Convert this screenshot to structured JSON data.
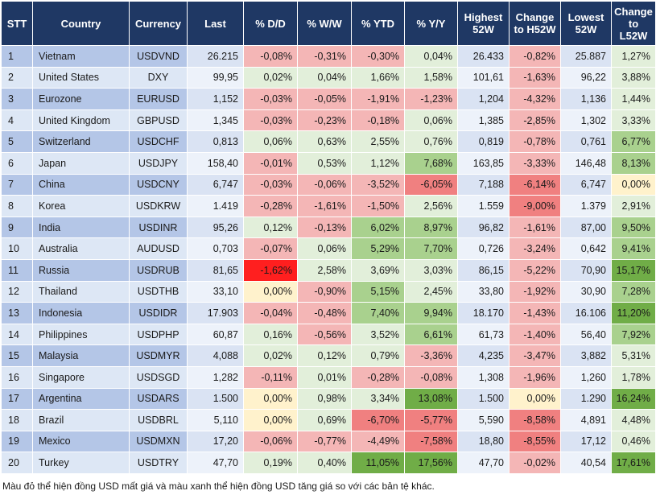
{
  "headers": [
    "STT",
    "Country",
    "Currency",
    "Last",
    "% D/D",
    "% W/W",
    "% YTD",
    "% Y/Y",
    "Highest 52W",
    "Change to H52W",
    "Lowest 52W",
    "Change to L52W"
  ],
  "rows": [
    {
      "stt": "1",
      "country": "Vietnam",
      "currency": "USDVND",
      "last": "26.215",
      "dd": "-0,08%",
      "ww": "-0,31%",
      "ytd": "-0,30%",
      "yy": "0,04%",
      "high": "26.433",
      "ch": "-0,82%",
      "low": "25.887",
      "cl": "1,27%"
    },
    {
      "stt": "2",
      "country": "United States",
      "currency": "DXY",
      "last": "99,95",
      "dd": "0,02%",
      "ww": "0,04%",
      "ytd": "1,66%",
      "yy": "1,58%",
      "high": "101,61",
      "ch": "-1,63%",
      "low": "96,22",
      "cl": "3,88%"
    },
    {
      "stt": "3",
      "country": "Eurozone",
      "currency": "EURUSD",
      "last": "1,152",
      "dd": "-0,03%",
      "ww": "-0,05%",
      "ytd": "-1,91%",
      "yy": "-1,23%",
      "high": "1,204",
      "ch": "-4,32%",
      "low": "1,136",
      "cl": "1,44%"
    },
    {
      "stt": "4",
      "country": "United Kingdom",
      "currency": "GBPUSD",
      "last": "1,345",
      "dd": "-0,03%",
      "ww": "-0,23%",
      "ytd": "-0,18%",
      "yy": "0,06%",
      "high": "1,385",
      "ch": "-2,85%",
      "low": "1,302",
      "cl": "3,33%"
    },
    {
      "stt": "5",
      "country": "Switzerland",
      "currency": "USDCHF",
      "last": "0,813",
      "dd": "0,06%",
      "ww": "0,63%",
      "ytd": "2,55%",
      "yy": "0,76%",
      "high": "0,819",
      "ch": "-0,78%",
      "low": "0,761",
      "cl": "6,77%"
    },
    {
      "stt": "6",
      "country": "Japan",
      "currency": "USDJPY",
      "last": "158,40",
      "dd": "-0,01%",
      "ww": "0,53%",
      "ytd": "1,12%",
      "yy": "7,68%",
      "high": "163,85",
      "ch": "-3,33%",
      "low": "146,48",
      "cl": "8,13%"
    },
    {
      "stt": "7",
      "country": "China",
      "currency": "USDCNY",
      "last": "6,747",
      "dd": "-0,03%",
      "ww": "-0,06%",
      "ytd": "-3,52%",
      "yy": "-6,05%",
      "high": "7,188",
      "ch": "-6,14%",
      "low": "6,747",
      "cl": "0,00%"
    },
    {
      "stt": "8",
      "country": "Korea",
      "currency": "USDKRW",
      "last": "1.419",
      "dd": "-0,28%",
      "ww": "-1,61%",
      "ytd": "-1,50%",
      "yy": "2,56%",
      "high": "1.559",
      "ch": "-9,00%",
      "low": "1.379",
      "cl": "2,91%"
    },
    {
      "stt": "9",
      "country": "India",
      "currency": "USDINR",
      "last": "95,26",
      "dd": "0,12%",
      "ww": "-0,13%",
      "ytd": "6,02%",
      "yy": "8,97%",
      "high": "96,82",
      "ch": "-1,61%",
      "low": "87,00",
      "cl": "9,50%"
    },
    {
      "stt": "10",
      "country": "Australia",
      "currency": "AUDUSD",
      "last": "0,703",
      "dd": "-0,07%",
      "ww": "0,06%",
      "ytd": "5,29%",
      "yy": "7,70%",
      "high": "0,726",
      "ch": "-3,24%",
      "low": "0,642",
      "cl": "9,41%"
    },
    {
      "stt": "11",
      "country": "Russia",
      "currency": "USDRUB",
      "last": "81,65",
      "dd": "-1,62%",
      "ww": "2,58%",
      "ytd": "3,69%",
      "yy": "3,03%",
      "high": "86,15",
      "ch": "-5,22%",
      "low": "70,90",
      "cl": "15,17%"
    },
    {
      "stt": "12",
      "country": "Thailand",
      "currency": "USDTHB",
      "last": "33,10",
      "dd": "0,00%",
      "ww": "-0,90%",
      "ytd": "5,15%",
      "yy": "2,45%",
      "high": "33,80",
      "ch": "-1,92%",
      "low": "30,90",
      "cl": "7,28%"
    },
    {
      "stt": "13",
      "country": "Indonesia",
      "currency": "USDIDR",
      "last": "17.903",
      "dd": "-0,04%",
      "ww": "-0,48%",
      "ytd": "7,40%",
      "yy": "9,94%",
      "high": "18.170",
      "ch": "-1,43%",
      "low": "16.106",
      "cl": "11,20%"
    },
    {
      "stt": "14",
      "country": "Philippines",
      "currency": "USDPHP",
      "last": "60,87",
      "dd": "0,16%",
      "ww": "-0,56%",
      "ytd": "3,52%",
      "yy": "6,61%",
      "high": "61,73",
      "ch": "-1,40%",
      "low": "56,40",
      "cl": "7,92%"
    },
    {
      "stt": "15",
      "country": "Malaysia",
      "currency": "USDMYR",
      "last": "4,088",
      "dd": "0,02%",
      "ww": "0,12%",
      "ytd": "0,79%",
      "yy": "-3,36%",
      "high": "4,235",
      "ch": "-3,47%",
      "low": "3,882",
      "cl": "5,31%"
    },
    {
      "stt": "16",
      "country": "Singapore",
      "currency": "USDSGD",
      "last": "1,282",
      "dd": "-0,11%",
      "ww": "0,01%",
      "ytd": "-0,28%",
      "yy": "-0,08%",
      "high": "1,308",
      "ch": "-1,96%",
      "low": "1,260",
      "cl": "1,78%"
    },
    {
      "stt": "17",
      "country": "Argentina",
      "currency": "USDARS",
      "last": "1.500",
      "dd": "0,00%",
      "ww": "0,98%",
      "ytd": "3,34%",
      "yy": "13,08%",
      "high": "1.500",
      "ch": "0,00%",
      "low": "1.290",
      "cl": "16,24%"
    },
    {
      "stt": "18",
      "country": "Brazil",
      "currency": "USDBRL",
      "last": "5,110",
      "dd": "0,00%",
      "ww": "0,69%",
      "ytd": "-6,70%",
      "yy": "-5,77%",
      "high": "5,590",
      "ch": "-8,58%",
      "low": "4,891",
      "cl": "4,48%"
    },
    {
      "stt": "19",
      "country": "Mexico",
      "currency": "USDMXN",
      "last": "17,20",
      "dd": "-0,06%",
      "ww": "-0,77%",
      "ytd": "-4,49%",
      "yy": "-7,58%",
      "high": "18,80",
      "ch": "-8,55%",
      "low": "17,12",
      "cl": "0,46%"
    },
    {
      "stt": "20",
      "country": "Turkey",
      "currency": "USDTRY",
      "last": "47,70",
      "dd": "0,19%",
      "ww": "0,40%",
      "ytd": "11,05%",
      "yy": "17,56%",
      "high": "47,70",
      "ch": "-0,02%",
      "low": "40,54",
      "cl": "17,61%"
    }
  ],
  "footnote": "Màu đỏ thể hiện đồng USD mất giá và màu xanh thể hiện đồng USD tăng giá so với các bản tệ khác.",
  "colors": {
    "header_bg": "#1f3864",
    "base_odd": "#b4c6e7",
    "base_even": "#dde7f5",
    "neutral_odd": "#dae3f3",
    "neutral_even": "#edf2fa",
    "zero": "#fff2cc",
    "neg_light": "#f4b6b6",
    "neg_mid": "#f08080",
    "neg_strong": "#ff5050",
    "neg_max": "#ff1f1f",
    "pos_light": "#e2efda",
    "pos_mid": "#a9d18e",
    "pos_strong": "#70ad47"
  }
}
